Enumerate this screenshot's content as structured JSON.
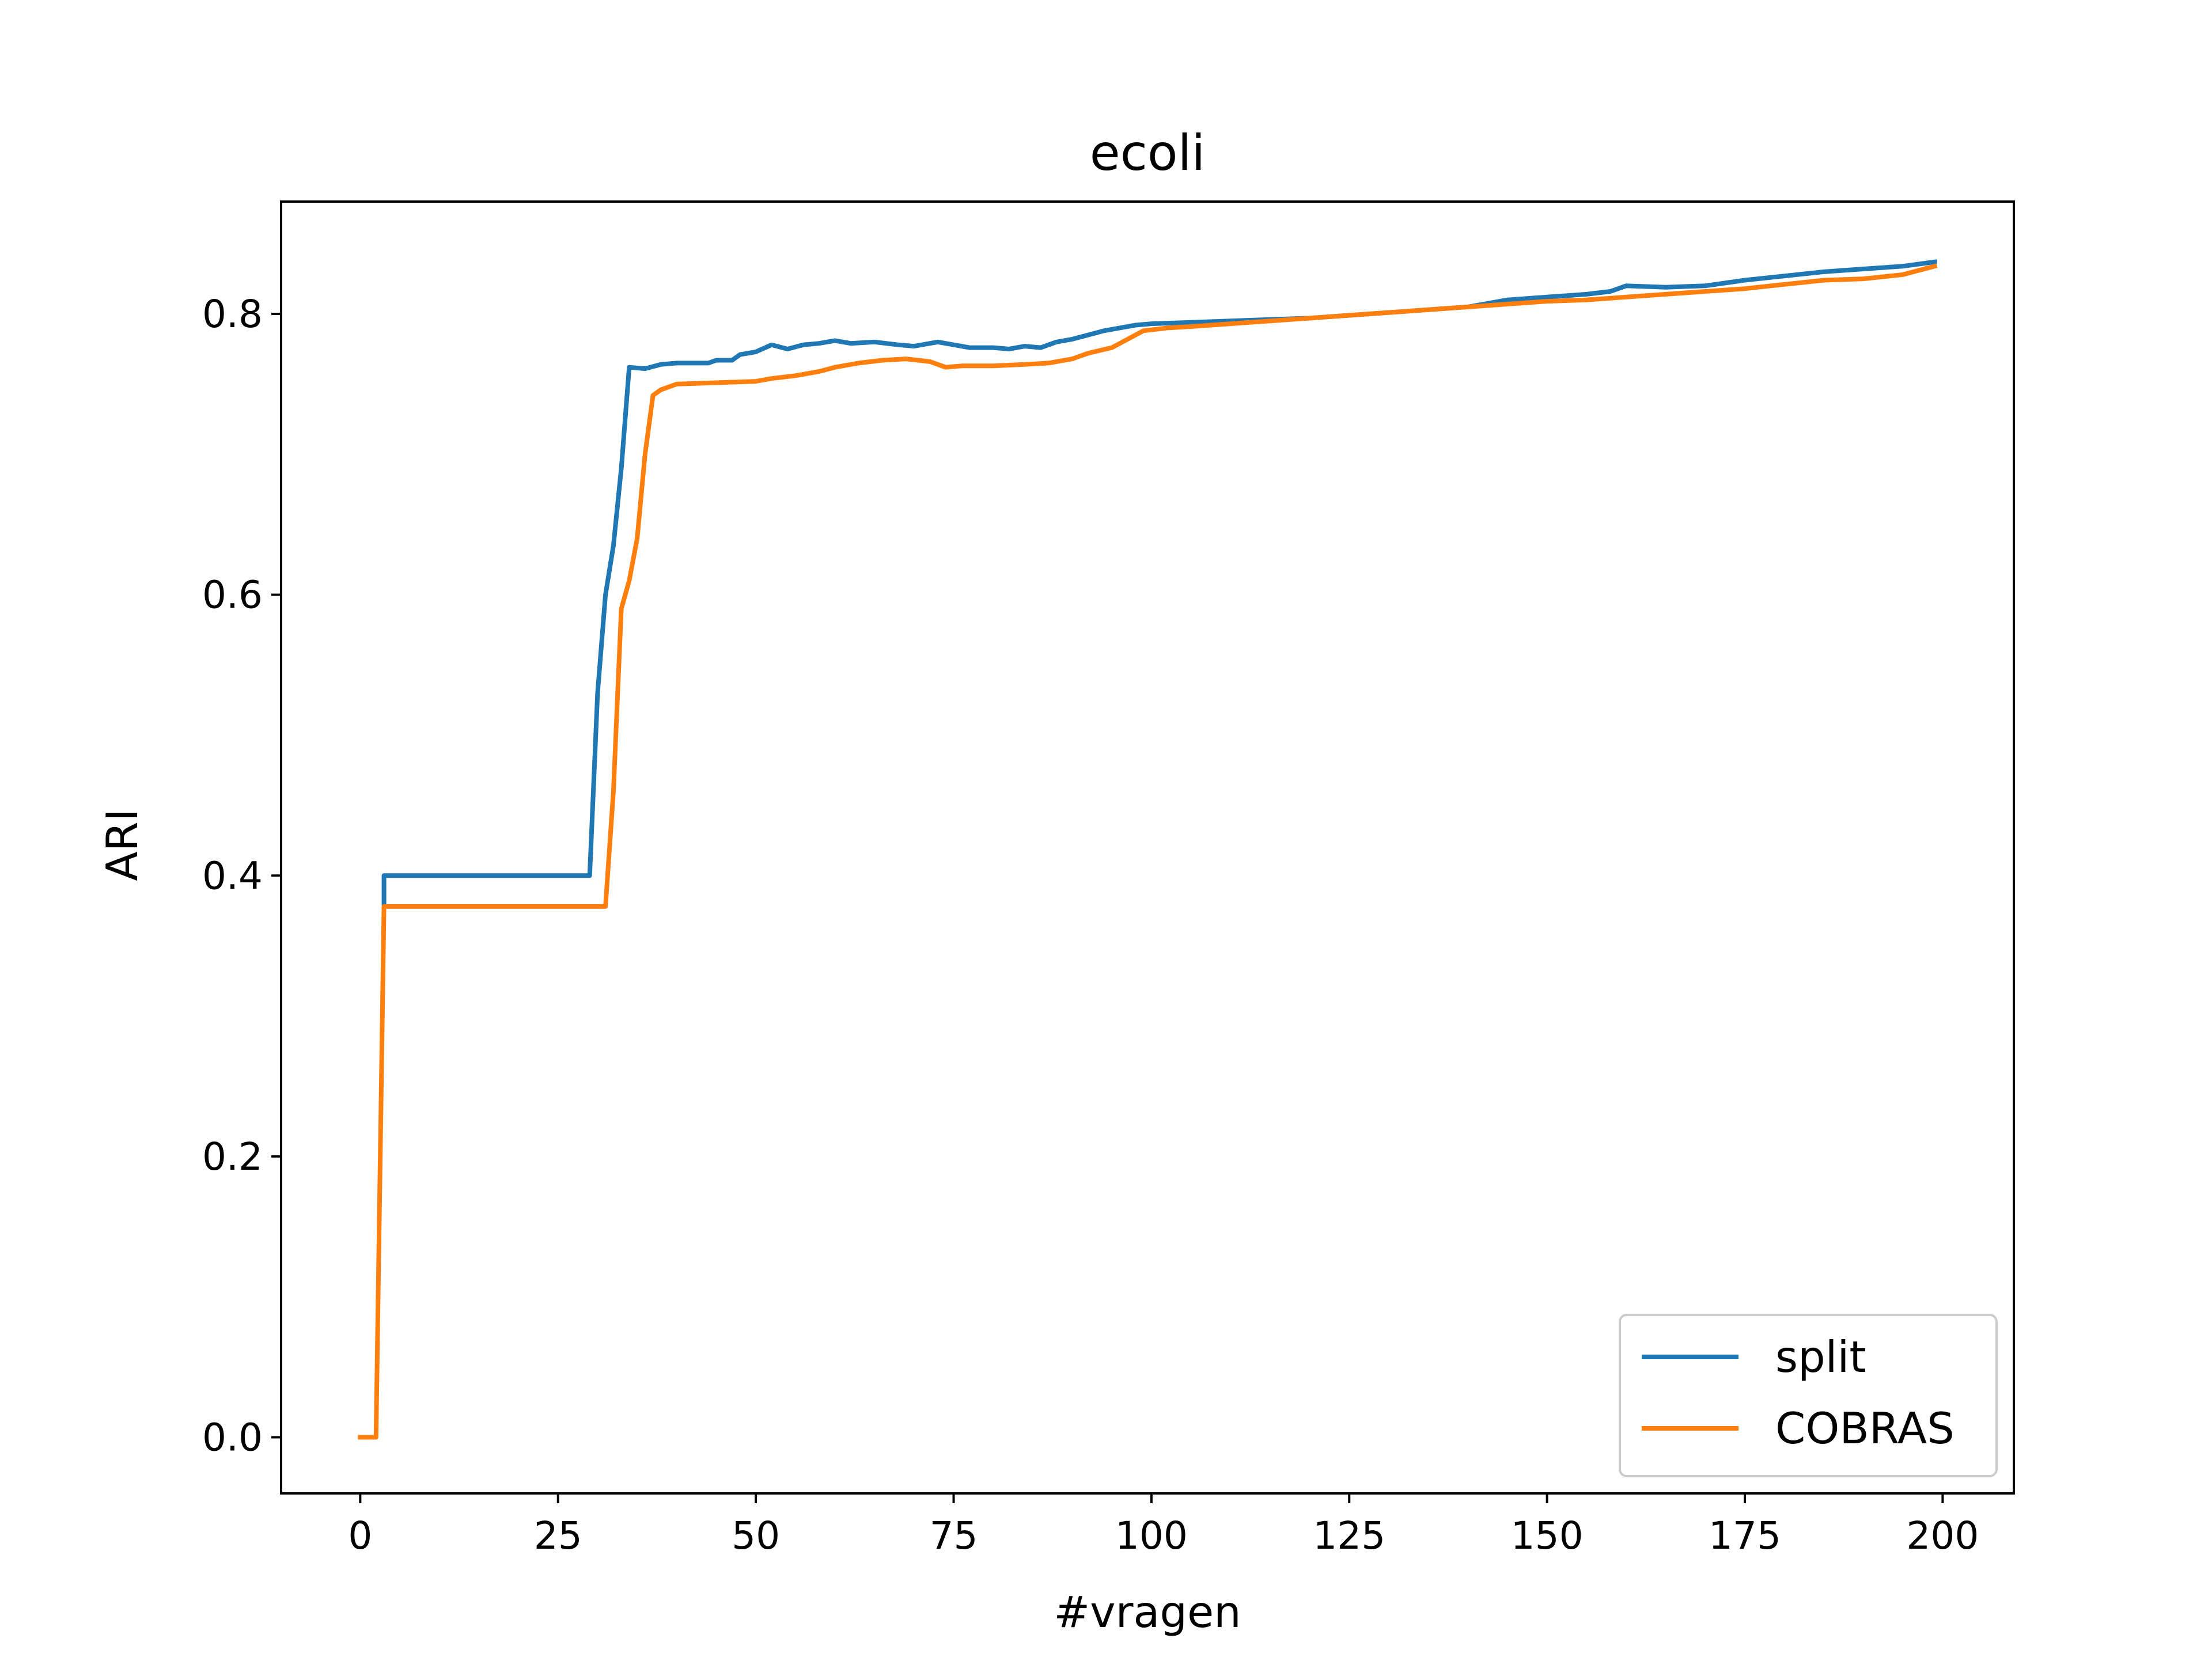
{
  "chart_data": {
    "type": "line",
    "title": "ecoli",
    "xlabel": "#vragen",
    "ylabel": "ARI",
    "xlim": [
      -10,
      209
    ],
    "ylim": [
      -0.04,
      0.88
    ],
    "xticks": [
      0,
      25,
      50,
      75,
      100,
      125,
      150,
      175,
      200
    ],
    "yticks": [
      0.0,
      0.2,
      0.4,
      0.6,
      0.8
    ],
    "xtick_labels": [
      "0",
      "25",
      "50",
      "75",
      "100",
      "125",
      "150",
      "175",
      "200"
    ],
    "ytick_labels": [
      "0.0",
      "0.2",
      "0.4",
      "0.6",
      "0.8"
    ],
    "grid": false,
    "legend_position": "lower-right",
    "series": [
      {
        "name": "split",
        "color": "#1f77b4",
        "points": [
          [
            3,
            0.38
          ],
          [
            3,
            0.4
          ],
          [
            29,
            0.4
          ],
          [
            30,
            0.53
          ],
          [
            31,
            0.6
          ],
          [
            32,
            0.635
          ],
          [
            33,
            0.69
          ],
          [
            34,
            0.762
          ],
          [
            36,
            0.761
          ],
          [
            38,
            0.764
          ],
          [
            40,
            0.765
          ],
          [
            44,
            0.765
          ],
          [
            45,
            0.767
          ],
          [
            47,
            0.767
          ],
          [
            48,
            0.771
          ],
          [
            50,
            0.773
          ],
          [
            52,
            0.778
          ],
          [
            54,
            0.775
          ],
          [
            56,
            0.778
          ],
          [
            58,
            0.779
          ],
          [
            60,
            0.781
          ],
          [
            62,
            0.779
          ],
          [
            65,
            0.78
          ],
          [
            68,
            0.778
          ],
          [
            70,
            0.777
          ],
          [
            73,
            0.78
          ],
          [
            75,
            0.778
          ],
          [
            77,
            0.776
          ],
          [
            80,
            0.776
          ],
          [
            82,
            0.775
          ],
          [
            84,
            0.777
          ],
          [
            86,
            0.776
          ],
          [
            88,
            0.78
          ],
          [
            90,
            0.782
          ],
          [
            92,
            0.785
          ],
          [
            94,
            0.788
          ],
          [
            96,
            0.79
          ],
          [
            98,
            0.792
          ],
          [
            100,
            0.793
          ],
          [
            105,
            0.794
          ],
          [
            110,
            0.795
          ],
          [
            115,
            0.796
          ],
          [
            120,
            0.797
          ],
          [
            125,
            0.799
          ],
          [
            130,
            0.801
          ],
          [
            135,
            0.803
          ],
          [
            140,
            0.805
          ],
          [
            145,
            0.81
          ],
          [
            150,
            0.812
          ],
          [
            155,
            0.814
          ],
          [
            158,
            0.816
          ],
          [
            160,
            0.82
          ],
          [
            165,
            0.819
          ],
          [
            170,
            0.82
          ],
          [
            175,
            0.824
          ],
          [
            180,
            0.827
          ],
          [
            185,
            0.83
          ],
          [
            190,
            0.832
          ],
          [
            195,
            0.834
          ],
          [
            199,
            0.837
          ]
        ]
      },
      {
        "name": "COBRAS",
        "color": "#ff7f0e",
        "points": [
          [
            0,
            0.0
          ],
          [
            2,
            0.0
          ],
          [
            3,
            0.378
          ],
          [
            31,
            0.378
          ],
          [
            32,
            0.46
          ],
          [
            33,
            0.59
          ],
          [
            34,
            0.61
          ],
          [
            35,
            0.64
          ],
          [
            36,
            0.7
          ],
          [
            37,
            0.742
          ],
          [
            38,
            0.746
          ],
          [
            40,
            0.75
          ],
          [
            45,
            0.751
          ],
          [
            50,
            0.752
          ],
          [
            52,
            0.754
          ],
          [
            55,
            0.756
          ],
          [
            58,
            0.759
          ],
          [
            60,
            0.762
          ],
          [
            63,
            0.765
          ],
          [
            66,
            0.767
          ],
          [
            69,
            0.768
          ],
          [
            72,
            0.766
          ],
          [
            74,
            0.762
          ],
          [
            76,
            0.763
          ],
          [
            80,
            0.763
          ],
          [
            84,
            0.764
          ],
          [
            87,
            0.765
          ],
          [
            90,
            0.768
          ],
          [
            92,
            0.772
          ],
          [
            95,
            0.776
          ],
          [
            97,
            0.782
          ],
          [
            99,
            0.788
          ],
          [
            102,
            0.79
          ],
          [
            105,
            0.791
          ],
          [
            110,
            0.793
          ],
          [
            115,
            0.795
          ],
          [
            120,
            0.797
          ],
          [
            125,
            0.799
          ],
          [
            130,
            0.801
          ],
          [
            135,
            0.803
          ],
          [
            140,
            0.805
          ],
          [
            145,
            0.807
          ],
          [
            150,
            0.809
          ],
          [
            155,
            0.81
          ],
          [
            160,
            0.812
          ],
          [
            165,
            0.814
          ],
          [
            170,
            0.816
          ],
          [
            175,
            0.818
          ],
          [
            180,
            0.821
          ],
          [
            185,
            0.824
          ],
          [
            190,
            0.825
          ],
          [
            195,
            0.828
          ],
          [
            199,
            0.834
          ]
        ]
      }
    ]
  }
}
